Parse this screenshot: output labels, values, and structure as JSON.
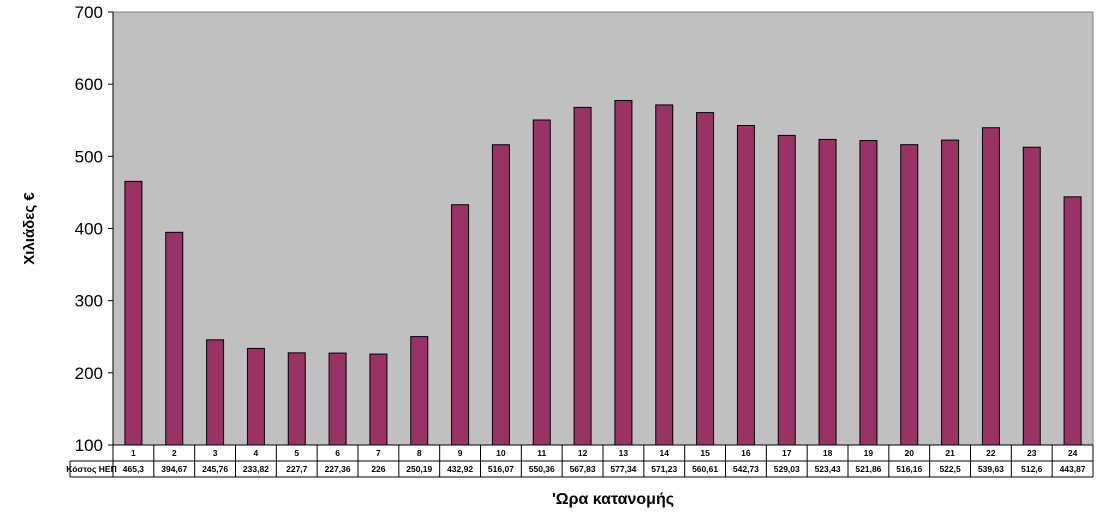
{
  "chart_data": {
    "type": "bar",
    "title": "",
    "xlabel": "'Ωρα κατανομής",
    "ylabel": "Χιλιάδες €",
    "ylim": [
      100,
      700
    ],
    "yticks": [
      100,
      200,
      300,
      400,
      500,
      600,
      700
    ],
    "grid": false,
    "legend": "none",
    "data_table": true,
    "categories": [
      "1",
      "2",
      "3",
      "4",
      "5",
      "6",
      "7",
      "8",
      "9",
      "10",
      "11",
      "12",
      "13",
      "14",
      "15",
      "16",
      "17",
      "18",
      "19",
      "20",
      "21",
      "22",
      "23",
      "24"
    ],
    "series": [
      {
        "name": "Κόστος ΗΕΠ",
        "values": [
          465.3,
          394.67,
          245.76,
          233.82,
          227.7,
          227.36,
          226,
          250.19,
          432.92,
          516.07,
          550.36,
          567.83,
          577.34,
          571.23,
          560.61,
          542.73,
          529.03,
          523.43,
          521.86,
          516.16,
          522.5,
          539.63,
          512.6,
          443.87
        ],
        "value_labels": [
          "465,3",
          "394,67",
          "245,76",
          "233,82",
          "227,7",
          "227,36",
          "226",
          "250,19",
          "432,92",
          "516,07",
          "550,36",
          "567,83",
          "577,34",
          "571,23",
          "560,61",
          "542,73",
          "529,03",
          "523,43",
          "521,86",
          "516,16",
          "522,5",
          "539,63",
          "512,6",
          "443,87"
        ],
        "color": "#993366"
      }
    ],
    "plot_background": "#c0c0c0"
  }
}
